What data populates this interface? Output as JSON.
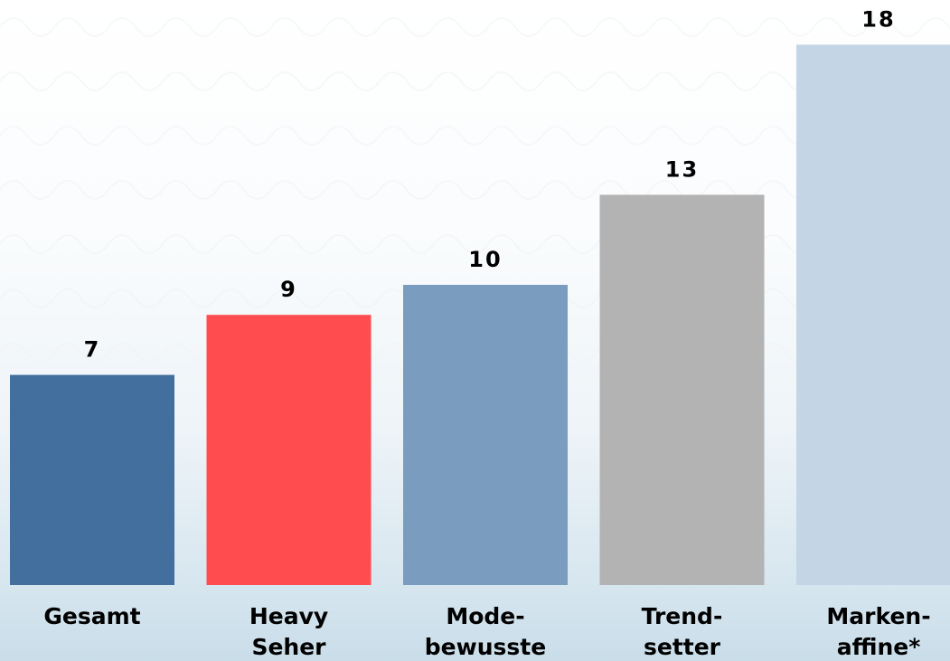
{
  "chart_data": {
    "type": "bar",
    "categories": [
      [
        "Gesamt"
      ],
      [
        "Heavy",
        "Seher"
      ],
      [
        "Mode-",
        "bewusste"
      ],
      [
        "Trend-",
        "setter"
      ],
      [
        "Marken-",
        "affine*"
      ]
    ],
    "values": [
      7,
      9,
      10,
      13,
      18
    ],
    "colors": [
      "#426f9e",
      "#ff4c4f",
      "#7a9dbf",
      "#b3b3b3",
      "#c4d5e5"
    ],
    "ylim": [
      0,
      20
    ],
    "grid": false,
    "legend": "none"
  }
}
